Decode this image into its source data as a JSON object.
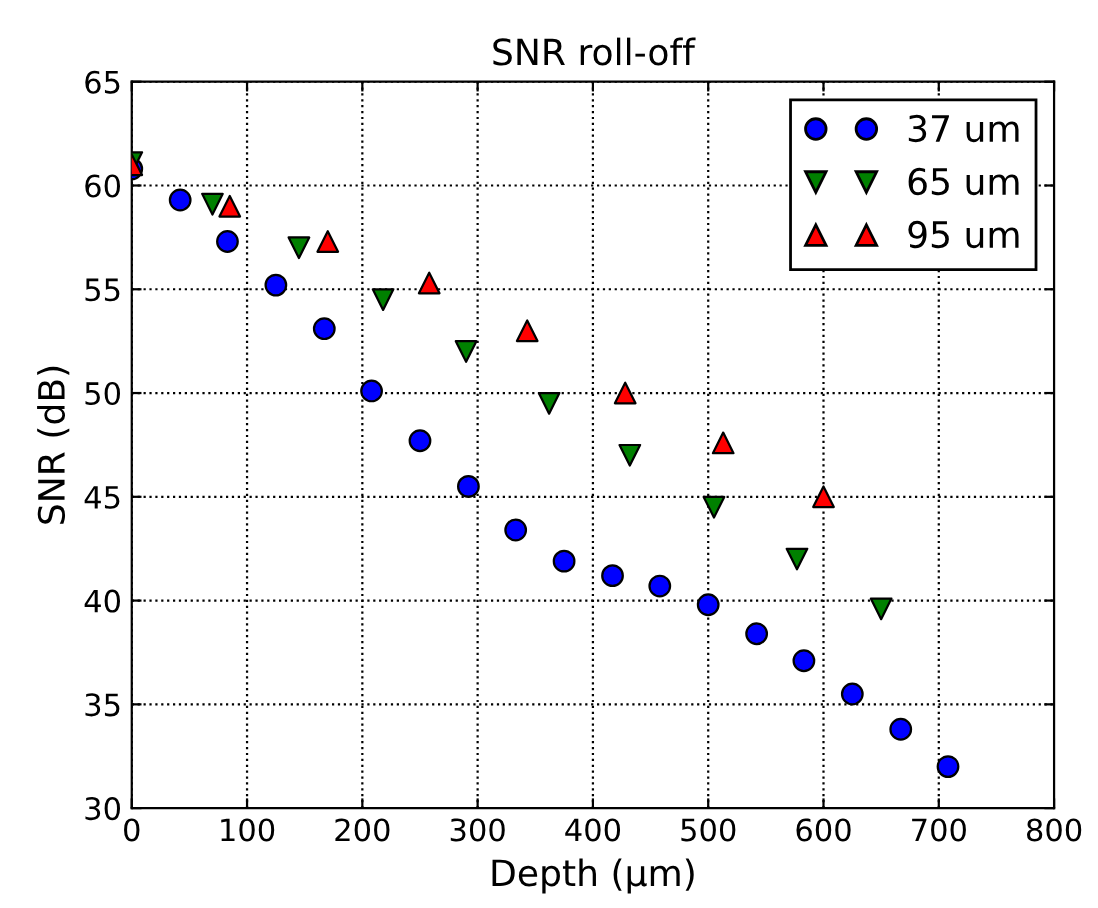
{
  "chart_data": {
    "type": "scatter",
    "title": "SNR roll-off",
    "xlabel": "Depth (μm)",
    "ylabel": "SNR (dB)",
    "xlim": [
      0,
      800
    ],
    "ylim": [
      30,
      65
    ],
    "xticks": [
      0,
      100,
      200,
      300,
      400,
      500,
      600,
      700,
      800
    ],
    "yticks": [
      30,
      35,
      40,
      45,
      50,
      55,
      60,
      65
    ],
    "grid": true,
    "legend": "top right",
    "series": [
      {
        "name": "37 um",
        "color": "#0000ff",
        "marker": "circle",
        "x": [
          0,
          42,
          83,
          125,
          167,
          208,
          250,
          292,
          333,
          375,
          417,
          458,
          500,
          542,
          583,
          625,
          667,
          708
        ],
        "values": [
          60.8,
          59.3,
          57.3,
          55.2,
          53.1,
          50.1,
          47.7,
          45.5,
          43.4,
          41.9,
          41.2,
          40.7,
          39.8,
          38.4,
          37.1,
          35.5,
          33.8,
          32.0
        ]
      },
      {
        "name": "65 um",
        "color": "#008000",
        "marker": "triangle_down",
        "x": [
          0,
          70,
          145,
          218,
          290,
          362,
          432,
          505,
          577,
          650
        ],
        "values": [
          61.1,
          59.1,
          57.0,
          54.5,
          52.0,
          49.5,
          47.0,
          44.5,
          42.0,
          39.6
        ]
      },
      {
        "name": "95 um",
        "color": "#ff0000",
        "marker": "triangle",
        "x": [
          0,
          85,
          170,
          258,
          343,
          428,
          513,
          600
        ],
        "values": [
          61.0,
          59.0,
          57.3,
          55.3,
          53.0,
          50.0,
          47.6,
          45.0
        ]
      }
    ]
  }
}
